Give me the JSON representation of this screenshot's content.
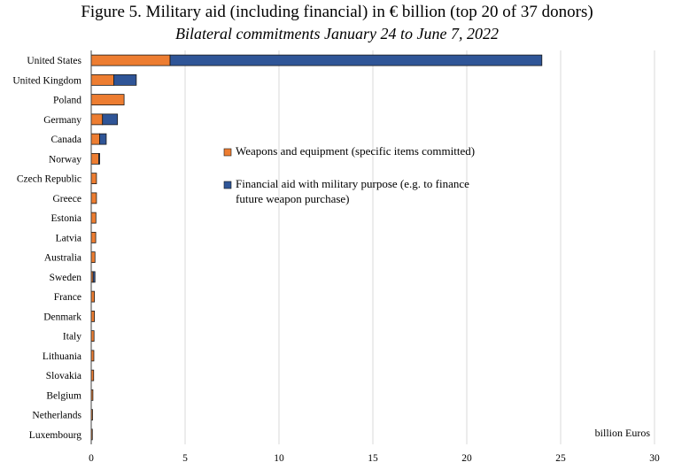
{
  "chart_data": {
    "type": "bar",
    "orientation": "horizontal",
    "stacked": true,
    "title": "Figure 5. Military aid (including financial) in € billion (top 20 of 37 donors)",
    "subtitle": "Bilateral commitments January 24 to June 7, 2022",
    "xlabel": "billion Euros",
    "xlim": [
      0,
      30
    ],
    "xticks": [
      0,
      5,
      10,
      15,
      20,
      25,
      30
    ],
    "grid": true,
    "legend_position": "center-right",
    "categories": [
      "United States",
      "United Kingdom",
      "Poland",
      "Germany",
      "Canada",
      "Norway",
      "Czech Republic",
      "Greece",
      "Estonia",
      "Latvia",
      "Australia",
      "Sweden",
      "France",
      "Denmark",
      "Italy",
      "Lithuania",
      "Slovakia",
      "Belgium",
      "Netherlands",
      "Luxembourg"
    ],
    "series": [
      {
        "name": "Weapons and equipment (specific items committed)",
        "color": "#ED7D31",
        "values": [
          4.2,
          1.2,
          1.75,
          0.6,
          0.45,
          0.4,
          0.28,
          0.28,
          0.25,
          0.24,
          0.2,
          0.1,
          0.17,
          0.17,
          0.15,
          0.14,
          0.13,
          0.09,
          0.07,
          0.06
        ]
      },
      {
        "name": "Financial aid with military purpose (e.g. to finance future weapon purchase)",
        "color": "#2F5597",
        "values": [
          19.8,
          1.2,
          0.0,
          0.8,
          0.35,
          0.05,
          0.0,
          0.0,
          0.0,
          0.0,
          0.0,
          0.1,
          0.0,
          0.0,
          0.0,
          0.0,
          0.0,
          0.0,
          0.0,
          0.0
        ]
      }
    ],
    "legend_lines": [
      [
        "Weapons and equipment (specific items committed)"
      ],
      [
        "Financial aid with military purpose (e.g. to finance",
        "future weapon purchase)"
      ]
    ]
  }
}
